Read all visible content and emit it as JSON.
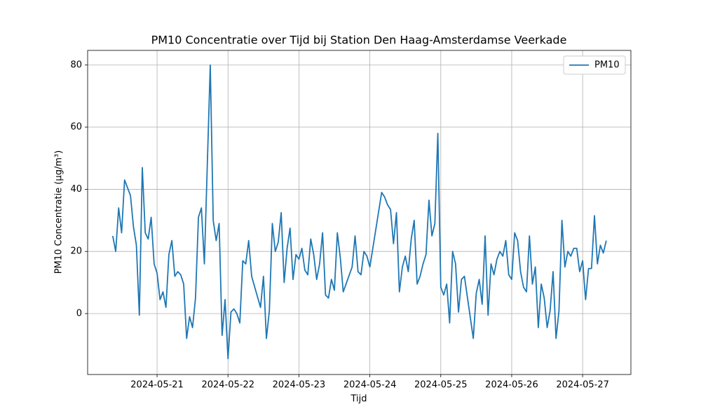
{
  "chart_data": {
    "type": "line",
    "title": "PM10 Concentratie over Tijd bij Station Den Haag-Amsterdamse Veerkade",
    "x_label": "Tijd",
    "y_label": "PM10 Concentratie (µg/m³)",
    "grid": true,
    "legend": "upper right",
    "xlim": [
      "2024-05-20 00:30",
      "2024-05-27 16:20"
    ],
    "xticks": [
      "2024-05-21",
      "2024-05-22",
      "2024-05-23",
      "2024-05-24",
      "2024-05-25",
      "2024-05-26",
      "2024-05-27"
    ],
    "ylim": [
      -19.6,
      84.7
    ],
    "yticks": [
      0,
      20,
      40,
      60,
      80
    ],
    "x": [
      "2024-05-20 09:00",
      "2024-05-20 10:00",
      "2024-05-20 11:00",
      "2024-05-20 12:00",
      "2024-05-20 13:00",
      "2024-05-20 15:00",
      "2024-05-20 16:00",
      "2024-05-20 17:00",
      "2024-05-20 18:00",
      "2024-05-20 19:00",
      "2024-05-20 20:00",
      "2024-05-20 21:00",
      "2024-05-20 22:00",
      "2024-05-20 23:00",
      "2024-05-21 00:00",
      "2024-05-21 01:00",
      "2024-05-21 02:00",
      "2024-05-21 03:00",
      "2024-05-21 04:00",
      "2024-05-21 05:00",
      "2024-05-21 06:00",
      "2024-05-21 07:00",
      "2024-05-21 08:00",
      "2024-05-21 09:00",
      "2024-05-21 10:00",
      "2024-05-21 11:00",
      "2024-05-21 12:00",
      "2024-05-21 13:00",
      "2024-05-21 14:00",
      "2024-05-21 15:00",
      "2024-05-21 16:00",
      "2024-05-21 18:00",
      "2024-05-21 19:00",
      "2024-05-21 20:00",
      "2024-05-21 21:00",
      "2024-05-21 22:00",
      "2024-05-21 23:00",
      "2024-05-22 00:00",
      "2024-05-22 01:00",
      "2024-05-22 02:00",
      "2024-05-22 03:00",
      "2024-05-22 04:00",
      "2024-05-22 05:00",
      "2024-05-22 06:00",
      "2024-05-22 07:00",
      "2024-05-22 08:00",
      "2024-05-22 11:00",
      "2024-05-22 12:00",
      "2024-05-22 13:00",
      "2024-05-22 14:00",
      "2024-05-22 15:00",
      "2024-05-22 16:00",
      "2024-05-22 17:00",
      "2024-05-22 18:00",
      "2024-05-22 19:00",
      "2024-05-22 20:00",
      "2024-05-22 21:00",
      "2024-05-22 22:00",
      "2024-05-22 23:00",
      "2024-05-23 00:00",
      "2024-05-23 01:00",
      "2024-05-23 02:00",
      "2024-05-23 03:00",
      "2024-05-23 04:00",
      "2024-05-23 05:00",
      "2024-05-23 06:00",
      "2024-05-23 07:00",
      "2024-05-23 08:00",
      "2024-05-23 09:00",
      "2024-05-23 10:00",
      "2024-05-23 11:00",
      "2024-05-23 12:00",
      "2024-05-23 13:00",
      "2024-05-23 14:00",
      "2024-05-23 15:00",
      "2024-05-23 18:00",
      "2024-05-23 19:00",
      "2024-05-23 20:00",
      "2024-05-23 21:00",
      "2024-05-23 22:00",
      "2024-05-23 23:00",
      "2024-05-24 00:00",
      "2024-05-24 04:00",
      "2024-05-24 05:00",
      "2024-05-24 06:00",
      "2024-05-24 07:00",
      "2024-05-24 08:00",
      "2024-05-24 09:00",
      "2024-05-24 10:00",
      "2024-05-24 11:00",
      "2024-05-24 12:00",
      "2024-05-24 13:00",
      "2024-05-24 14:00",
      "2024-05-24 15:00",
      "2024-05-24 16:00",
      "2024-05-24 17:00",
      "2024-05-24 18:00",
      "2024-05-24 19:00",
      "2024-05-24 20:00",
      "2024-05-24 21:00",
      "2024-05-24 22:00",
      "2024-05-24 23:00",
      "2024-05-25 00:00",
      "2024-05-25 01:00",
      "2024-05-25 02:00",
      "2024-05-25 03:00",
      "2024-05-25 04:00",
      "2024-05-25 05:00",
      "2024-05-25 06:00",
      "2024-05-25 07:00",
      "2024-05-25 08:00",
      "2024-05-25 11:00",
      "2024-05-25 12:00",
      "2024-05-25 13:00",
      "2024-05-25 14:00",
      "2024-05-25 15:00",
      "2024-05-25 16:00",
      "2024-05-25 17:00",
      "2024-05-25 18:00",
      "2024-05-25 19:00",
      "2024-05-25 20:00",
      "2024-05-25 21:00",
      "2024-05-25 22:00",
      "2024-05-25 23:00",
      "2024-05-26 00:00",
      "2024-05-26 01:00",
      "2024-05-26 02:00",
      "2024-05-26 03:00",
      "2024-05-26 04:00",
      "2024-05-26 05:00",
      "2024-05-26 06:00",
      "2024-05-26 07:00",
      "2024-05-26 08:00",
      "2024-05-26 09:00",
      "2024-05-26 10:00",
      "2024-05-26 11:00",
      "2024-05-26 12:00",
      "2024-05-26 13:00",
      "2024-05-26 14:00",
      "2024-05-26 15:00",
      "2024-05-26 16:00",
      "2024-05-26 17:00",
      "2024-05-26 18:00",
      "2024-05-26 19:00",
      "2024-05-26 20:00",
      "2024-05-26 21:00",
      "2024-05-26 22:00",
      "2024-05-26 23:00",
      "2024-05-27 00:00",
      "2024-05-27 01:00",
      "2024-05-27 02:00",
      "2024-05-27 03:00",
      "2024-05-27 04:00",
      "2024-05-27 05:00",
      "2024-05-27 06:00",
      "2024-05-27 07:00",
      "2024-05-27 08:00"
    ],
    "series": [
      {
        "name": "PM10",
        "color": "#1f77b4",
        "values": [
          25,
          20,
          34,
          26,
          43,
          38,
          28,
          22,
          -0.5,
          47,
          26,
          24,
          31,
          16,
          13,
          4.5,
          7,
          2,
          19,
          23.5,
          12,
          13.5,
          12.5,
          9.5,
          -8,
          -1,
          -4.5,
          5,
          31,
          34,
          16,
          80,
          30,
          23.5,
          29,
          -7,
          4.5,
          -14.5,
          0.5,
          1.5,
          0,
          -3,
          17,
          16,
          23.5,
          12,
          2,
          12,
          -8,
          1,
          29,
          20,
          23,
          32.5,
          10,
          21,
          27.5,
          11,
          19,
          17.5,
          21,
          14,
          12.5,
          24,
          19,
          11,
          16,
          26,
          6,
          5,
          11,
          7.5,
          26,
          18,
          7,
          15,
          25,
          13.5,
          12.5,
          20,
          18.5,
          15,
          39,
          37.5,
          35,
          33.5,
          22.5,
          32.5,
          7,
          15,
          18.5,
          13.5,
          24,
          30,
          9.5,
          12,
          16,
          19,
          36.5,
          25,
          29,
          58,
          8.5,
          6,
          9.5,
          -3,
          20,
          16,
          0.5,
          11,
          12,
          -8,
          6.5,
          11,
          3,
          25,
          -0.5,
          16,
          12.5,
          17.5,
          20,
          18.5,
          23.5,
          12.5,
          11,
          26,
          23.5,
          13.5,
          8.5,
          7,
          25,
          9.5,
          15,
          -4.5,
          9.5,
          5,
          -4.5,
          1,
          13.5,
          -8,
          1,
          30,
          15,
          20,
          18.5,
          21,
          21,
          13.5,
          17,
          4.5,
          14.5,
          14.5,
          31.5,
          16,
          22,
          19.5,
          23.5
        ]
      }
    ]
  }
}
